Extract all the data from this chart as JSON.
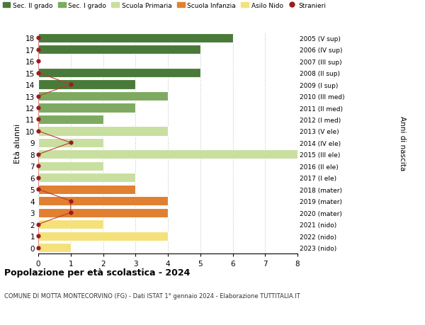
{
  "ages": [
    0,
    1,
    2,
    3,
    4,
    5,
    6,
    7,
    8,
    9,
    10,
    11,
    12,
    13,
    14,
    15,
    16,
    17,
    18
  ],
  "bar_values": [
    1,
    4,
    2,
    4,
    4,
    3,
    3,
    2,
    8,
    2,
    4,
    2,
    3,
    4,
    3,
    5,
    0,
    5,
    6
  ],
  "bar_colors": [
    "#f5e17a",
    "#f5e17a",
    "#f5e17a",
    "#e08030",
    "#e08030",
    "#e08030",
    "#c8dfa0",
    "#c8dfa0",
    "#c8dfa0",
    "#c8dfa0",
    "#c8dfa0",
    "#7daa60",
    "#7daa60",
    "#7daa60",
    "#4a7a3a",
    "#4a7a3a",
    "#4a7a3a",
    "#4a7a3a",
    "#4a7a3a"
  ],
  "stranieri_values": [
    0,
    0,
    0,
    1,
    1,
    0,
    0,
    0,
    0,
    1,
    0,
    0,
    0,
    0,
    1,
    0,
    0,
    0,
    0
  ],
  "right_labels": [
    "2023 (nido)",
    "2022 (nido)",
    "2021 (nido)",
    "2020 (mater)",
    "2019 (mater)",
    "2018 (mater)",
    "2017 (I ele)",
    "2016 (II ele)",
    "2015 (III ele)",
    "2014 (IV ele)",
    "2013 (V ele)",
    "2012 (I med)",
    "2011 (II med)",
    "2010 (III med)",
    "2009 (I sup)",
    "2008 (II sup)",
    "2007 (III sup)",
    "2006 (IV sup)",
    "2005 (V sup)"
  ],
  "legend_labels": [
    "Sec. II grado",
    "Sec. I grado",
    "Scuola Primaria",
    "Scuola Infanzia",
    "Asilo Nido",
    "Stranieri"
  ],
  "legend_colors": [
    "#4a7a3a",
    "#7daa60",
    "#c8dfa0",
    "#e08030",
    "#f5e17a",
    "#9b1c1c"
  ],
  "ylabel": "Età alunni",
  "right_ylabel": "Anni di nascita",
  "title": "Popolazione per età scolastica - 2024",
  "subtitle": "COMUNE DI MOTTA MONTECORVINO (FG) - Dati ISTAT 1° gennaio 2024 - Elaborazione TUTTITALIA.IT",
  "xlim": [
    0,
    8
  ],
  "xticks": [
    0,
    1,
    2,
    3,
    4,
    5,
    6,
    7,
    8
  ],
  "bg_color": "#ffffff",
  "grid_color": "#cccccc",
  "stranieri_color": "#9b1c1c",
  "stranieri_line_color": "#c0392b"
}
